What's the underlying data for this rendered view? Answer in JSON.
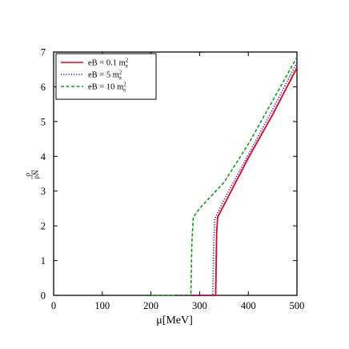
{
  "chart_data": {
    "type": "line",
    "title": "",
    "xlabel": "μ[MeV]",
    "ylabel_num": "ρ",
    "ylabel_den": "ρN",
    "xlim": [
      0,
      500
    ],
    "ylim": [
      0,
      7
    ],
    "xticks": [
      "0",
      "100",
      "200",
      "300",
      "400",
      "500"
    ],
    "yticks": [
      "0",
      "1",
      "2",
      "3",
      "4",
      "5",
      "6",
      "7"
    ],
    "legend_position": "top-left",
    "series": [
      {
        "name": "eB = 0.1 m",
        "name_sup": "2",
        "name_sub": "π",
        "color": "#e8001c",
        "dash": "solid",
        "points": [
          [
            250,
            0
          ],
          [
            333,
            0
          ],
          [
            335,
            1.8
          ],
          [
            337,
            2.25
          ],
          [
            350,
            2.6
          ],
          [
            400,
            3.95
          ],
          [
            450,
            5.2
          ],
          [
            500,
            6.55
          ]
        ]
      },
      {
        "name": "eB = 5 m",
        "name_sup": "2",
        "name_sub": "π",
        "color": "#1020e0",
        "dash": "dotted",
        "points": [
          [
            250,
            0
          ],
          [
            327,
            0
          ],
          [
            329,
            1.5
          ],
          [
            331,
            2.2
          ],
          [
            350,
            2.75
          ],
          [
            400,
            4.05
          ],
          [
            450,
            5.35
          ],
          [
            500,
            6.7
          ]
        ]
      },
      {
        "name": "eB = 10 m",
        "name_sup": "2",
        "name_sub": "π",
        "color": "#0f9a1c",
        "dash": "dashed",
        "points": [
          [
            200,
            0
          ],
          [
            282,
            0
          ],
          [
            284,
            1.5
          ],
          [
            287,
            2.25
          ],
          [
            300,
            2.5
          ],
          [
            350,
            3.25
          ],
          [
            400,
            4.35
          ],
          [
            450,
            5.6
          ],
          [
            500,
            6.85
          ]
        ]
      }
    ]
  }
}
